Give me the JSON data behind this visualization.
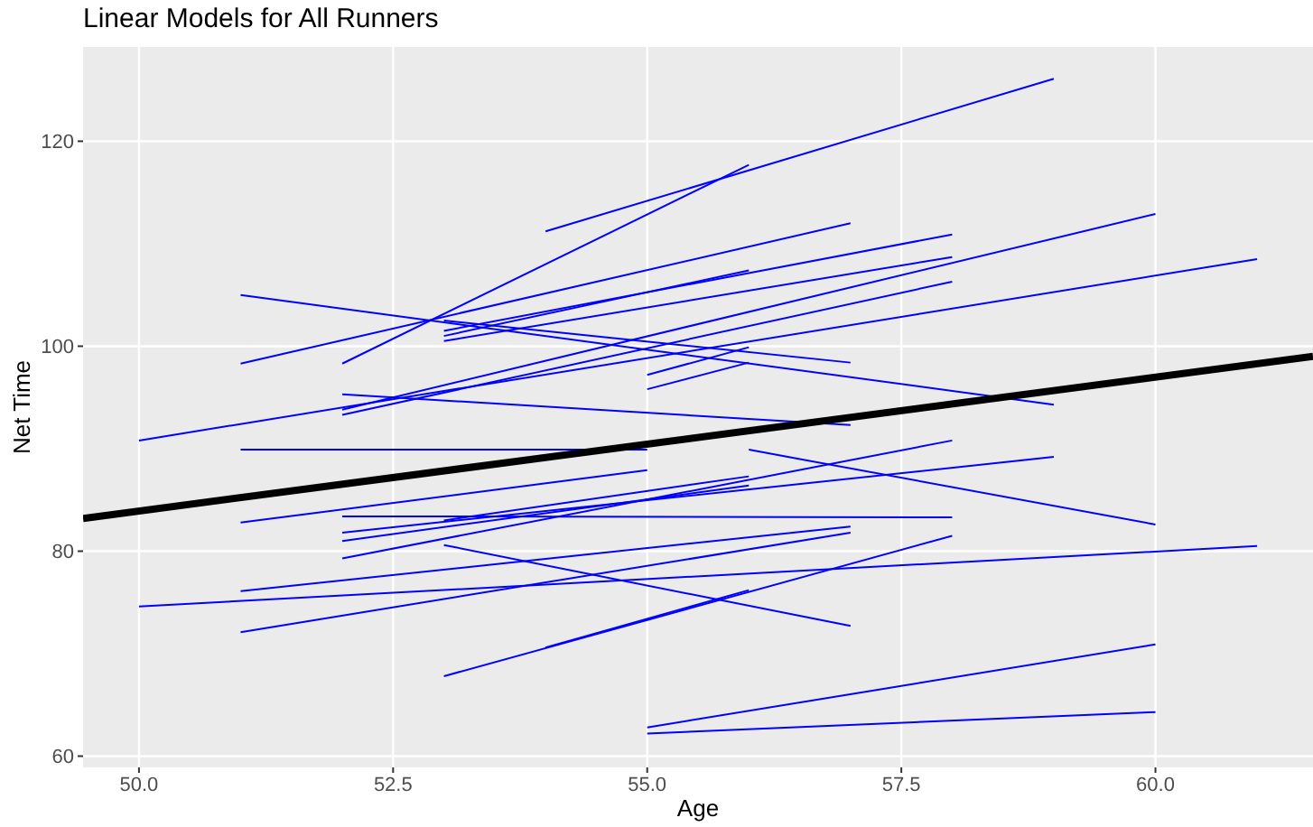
{
  "chart_data": {
    "type": "line",
    "title": "Linear Models for All Runners",
    "xlabel": "Age",
    "ylabel": "Net Time",
    "xlim": [
      49.45,
      61.55
    ],
    "ylim": [
      58.9,
      129.2
    ],
    "xticks": [
      {
        "value": 50,
        "label": "50.0"
      },
      {
        "value": 52.5,
        "label": "52.5"
      },
      {
        "value": 55,
        "label": "55.0"
      },
      {
        "value": 57.5,
        "label": "57.5"
      },
      {
        "value": 60,
        "label": "60.0"
      }
    ],
    "yticks": [
      60,
      80,
      100,
      120
    ],
    "grid": true,
    "series": [
      {
        "color": "#0000ff",
        "x": [
          54,
          59
        ],
        "values": [
          111.2,
          126.1
        ]
      },
      {
        "color": "#0000ff",
        "x": [
          52,
          56
        ],
        "values": [
          98.3,
          117.7
        ]
      },
      {
        "color": "#0000ff",
        "x": [
          51,
          57
        ],
        "values": [
          98.3,
          112.0
        ]
      },
      {
        "color": "#0000ff",
        "x": [
          51,
          59
        ],
        "values": [
          105.0,
          94.3
        ]
      },
      {
        "color": "#0000ff",
        "x": [
          50,
          61
        ],
        "values": [
          90.8,
          108.5
        ]
      },
      {
        "color": "#0000ff",
        "x": [
          52,
          60
        ],
        "values": [
          93.8,
          112.9
        ]
      },
      {
        "color": "#0000ff",
        "x": [
          52,
          58
        ],
        "values": [
          93.3,
          106.3
        ]
      },
      {
        "color": "#0000ff",
        "x": [
          53,
          58
        ],
        "values": [
          101.5,
          110.9
        ]
      },
      {
        "color": "#0000ff",
        "x": [
          53,
          58
        ],
        "values": [
          100.5,
          108.7
        ]
      },
      {
        "color": "#0000ff",
        "x": [
          53,
          56
        ],
        "values": [
          101.0,
          107.4
        ]
      },
      {
        "color": "#0000ff",
        "x": [
          53,
          57
        ],
        "values": [
          102.5,
          98.4
        ]
      },
      {
        "color": "#0000ff",
        "x": [
          55,
          56
        ],
        "values": [
          97.2,
          99.9
        ]
      },
      {
        "color": "#0000ff",
        "x": [
          55,
          56
        ],
        "values": [
          95.8,
          98.4
        ]
      },
      {
        "color": "#0000ff",
        "x": [
          52,
          57
        ],
        "values": [
          95.3,
          92.3
        ]
      },
      {
        "color": "#0000ff",
        "x": [
          51,
          55
        ],
        "values": [
          89.9,
          89.9
        ]
      },
      {
        "color": "#0000ff",
        "x": [
          56,
          60
        ],
        "values": [
          89.9,
          82.6
        ]
      },
      {
        "color": "#0000ff",
        "x": [
          51,
          55
        ],
        "values": [
          82.8,
          87.9
        ]
      },
      {
        "color": "#0000ff",
        "x": [
          52,
          58
        ],
        "values": [
          79.3,
          90.8
        ]
      },
      {
        "color": "#0000ff",
        "x": [
          52,
          59
        ],
        "values": [
          81.8,
          89.2
        ]
      },
      {
        "color": "#0000ff",
        "x": [
          52,
          56
        ],
        "values": [
          81.0,
          86.4
        ]
      },
      {
        "color": "#0000ff",
        "x": [
          53,
          56
        ],
        "values": [
          83.0,
          87.3
        ]
      },
      {
        "color": "#0000ff",
        "x": [
          52,
          58
        ],
        "values": [
          83.4,
          83.3
        ]
      },
      {
        "color": "#0000ff",
        "x": [
          51,
          57
        ],
        "values": [
          76.1,
          82.4
        ]
      },
      {
        "color": "#0000ff",
        "x": [
          51,
          57
        ],
        "values": [
          72.1,
          81.8
        ]
      },
      {
        "color": "#0000ff",
        "x": [
          50,
          61
        ],
        "values": [
          74.6,
          80.5
        ]
      },
      {
        "color": "#0000ff",
        "x": [
          53,
          57
        ],
        "values": [
          80.6,
          72.7
        ]
      },
      {
        "color": "#0000ff",
        "x": [
          53,
          58
        ],
        "values": [
          67.8,
          81.5
        ]
      },
      {
        "color": "#0000ff",
        "x": [
          54,
          56
        ],
        "values": [
          70.6,
          76.2
        ]
      },
      {
        "color": "#0000ff",
        "x": [
          55,
          60
        ],
        "values": [
          62.8,
          70.9
        ]
      },
      {
        "color": "#0000ff",
        "x": [
          55,
          60
        ],
        "values": [
          62.2,
          64.3
        ]
      },
      {
        "color": "#000000",
        "x": [
          49.45,
          61.55
        ],
        "values": [
          83.2,
          99.0
        ]
      }
    ]
  }
}
